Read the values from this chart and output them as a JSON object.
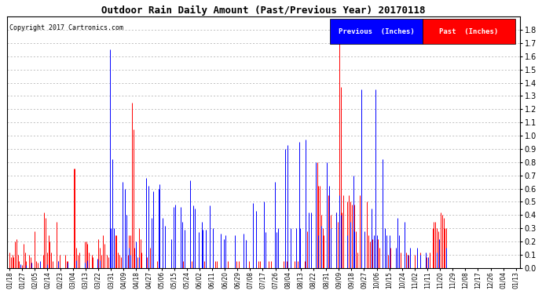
{
  "title": "Outdoor Rain Daily Amount (Past/Previous Year) 20170118",
  "copyright": "Copyright 2017 Cartronics.com",
  "legend_previous_label": "Previous  (Inches)",
  "legend_past_label": "Past  (Inches)",
  "previous_color": "#0000ff",
  "past_color": "#ff0000",
  "background_color": "#ffffff",
  "plot_bg_color": "#ffffff",
  "grid_color": "#aaaaaa",
  "ylim_max": 1.9,
  "yticks": [
    0.0,
    0.1,
    0.2,
    0.3,
    0.4,
    0.5,
    0.6,
    0.7,
    0.8,
    0.9,
    1.0,
    1.1,
    1.2,
    1.3,
    1.4,
    1.5,
    1.6,
    1.7,
    1.8
  ],
  "x_labels": [
    "01/18",
    "01/27",
    "02/05",
    "02/14",
    "02/23",
    "03/04",
    "03/13",
    "03/22",
    "03/31",
    "04/09",
    "04/18",
    "04/27",
    "05/06",
    "05/15",
    "05/24",
    "06/02",
    "06/11",
    "06/20",
    "06/29",
    "07/08",
    "07/17",
    "07/26",
    "08/04",
    "08/13",
    "08/22",
    "08/31",
    "09/09",
    "09/18",
    "09/27",
    "10/06",
    "10/15",
    "10/24",
    "11/02",
    "11/11",
    "11/20",
    "11/29",
    "12/08",
    "12/17",
    "12/26",
    "01/04",
    "01/13"
  ],
  "n_days": 365
}
